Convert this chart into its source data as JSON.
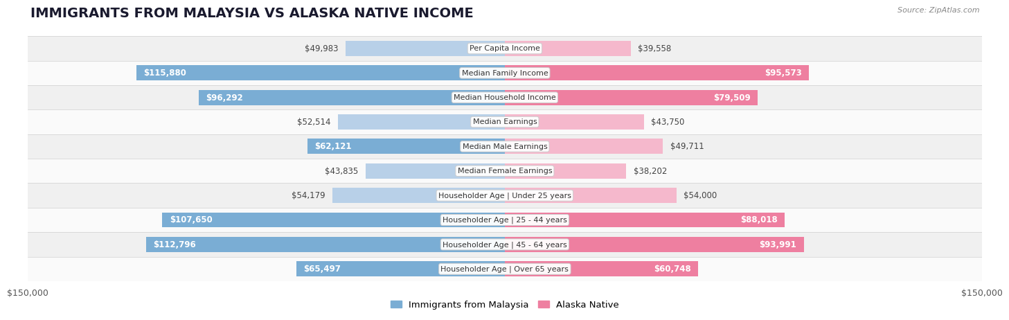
{
  "title": "IMMIGRANTS FROM MALAYSIA VS ALASKA NATIVE INCOME",
  "source": "Source: ZipAtlas.com",
  "categories": [
    "Per Capita Income",
    "Median Family Income",
    "Median Household Income",
    "Median Earnings",
    "Median Male Earnings",
    "Median Female Earnings",
    "Householder Age | Under 25 years",
    "Householder Age | 25 - 44 years",
    "Householder Age | 45 - 64 years",
    "Householder Age | Over 65 years"
  ],
  "malaysia_values": [
    49983,
    115880,
    96292,
    52514,
    62121,
    43835,
    54179,
    107650,
    112796,
    65497
  ],
  "alaska_values": [
    39558,
    95573,
    79509,
    43750,
    49711,
    38202,
    54000,
    88018,
    93991,
    60748
  ],
  "malaysia_labels": [
    "$49,983",
    "$115,880",
    "$96,292",
    "$52,514",
    "$62,121",
    "$43,835",
    "$54,179",
    "$107,650",
    "$112,796",
    "$65,497"
  ],
  "alaska_labels": [
    "$39,558",
    "$95,573",
    "$79,509",
    "$43,750",
    "$49,711",
    "$38,202",
    "$54,000",
    "$88,018",
    "$93,991",
    "$60,748"
  ],
  "malaysia_color_light": "#b8d0e8",
  "malaysia_color_dark": "#7aadd4",
  "alaska_color_light": "#f5b8cc",
  "alaska_color_dark": "#ee7fa0",
  "max_value": 150000,
  "background_color": "#ffffff",
  "row_bg_even": "#f0f0f0",
  "row_bg_odd": "#fafafa",
  "row_border_color": "#d0d0d0",
  "legend_malaysia": "Immigrants from Malaysia",
  "legend_alaska": "Alaska Native",
  "xlabel_left": "$150,000",
  "xlabel_right": "$150,000",
  "inside_label_threshold": 55000,
  "title_fontsize": 14,
  "label_fontsize": 8.5,
  "cat_fontsize": 8.0,
  "tick_fontsize": 9
}
